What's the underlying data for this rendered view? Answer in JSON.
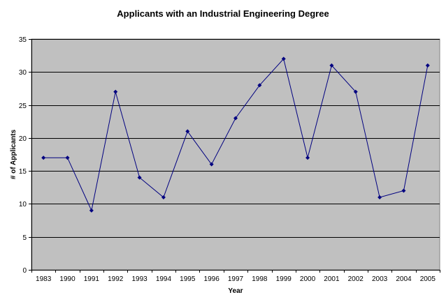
{
  "chart_data": {
    "type": "line",
    "title": "Applicants with an Industrial Engineering Degree",
    "xlabel": "Year",
    "ylabel": "# of Applicants",
    "categories": [
      "1983",
      "1990",
      "1991",
      "1992",
      "1993",
      "1994",
      "1995",
      "1996",
      "1997",
      "1998",
      "1999",
      "2000",
      "2001",
      "2002",
      "2003",
      "2004",
      "2005"
    ],
    "series": [
      {
        "values": [
          17,
          17,
          9,
          27,
          14,
          11,
          21,
          16,
          23,
          28,
          32,
          17,
          31,
          27,
          11,
          12,
          31
        ]
      }
    ],
    "ylim": [
      0,
      35
    ],
    "yticks": [
      0,
      5,
      10,
      15,
      20,
      25,
      30,
      35
    ],
    "grid": "horizontal",
    "legend": "none",
    "colors": {
      "plot_background": "#c0c0c0",
      "gridline": "#000000",
      "series_line": "#000080",
      "marker": "#000080"
    }
  }
}
